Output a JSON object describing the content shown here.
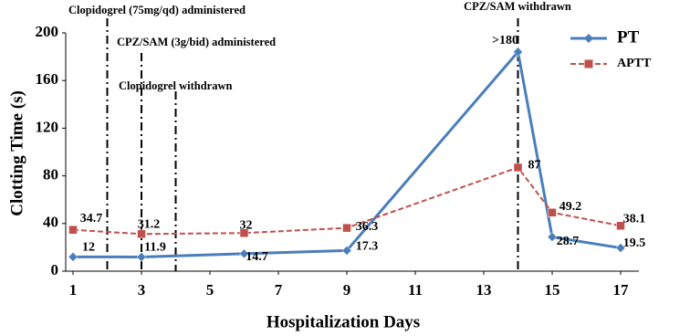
{
  "chart_data": {
    "type": "line",
    "xlabel": "Hospitalization Days",
    "ylabel": "Clotting Time (s)",
    "x": [
      1,
      3,
      6,
      9,
      14,
      15,
      17
    ],
    "series": [
      {
        "name": "PT",
        "color": "#4a7ebb",
        "marker": "diamond",
        "dashed": false,
        "values": [
          12,
          11.9,
          14.7,
          17.3,
          184,
          28.7,
          19.5
        ],
        "value_labels": [
          "12",
          "11.9",
          "14.7",
          "17.3",
          ">180",
          "28.7",
          "19.5"
        ]
      },
      {
        "name": "APTT",
        "color": "#c0504d",
        "marker": "square",
        "dashed": true,
        "values": [
          34.7,
          31.2,
          32,
          36.3,
          87,
          49.2,
          38.1
        ]
      }
    ],
    "xlim": [
      1,
      17
    ],
    "xticks": [
      1,
      3,
      5,
      7,
      9,
      11,
      13,
      15,
      17
    ],
    "ylim": [
      0,
      200
    ],
    "yticks": [
      0,
      40,
      80,
      120,
      160,
      200
    ],
    "grid": false,
    "legend": "upper right",
    "annotations": [
      {
        "text": "Clopidogrel (75mg/qd) administered",
        "x": 2
      },
      {
        "text": "CPZ/SAM (3g/bid) administered",
        "x": 3
      },
      {
        "text": "Clopidogrel withdrawn",
        "x": 4
      },
      {
        "text": "CPZ/SAM withdrawn",
        "x": 14
      }
    ]
  }
}
